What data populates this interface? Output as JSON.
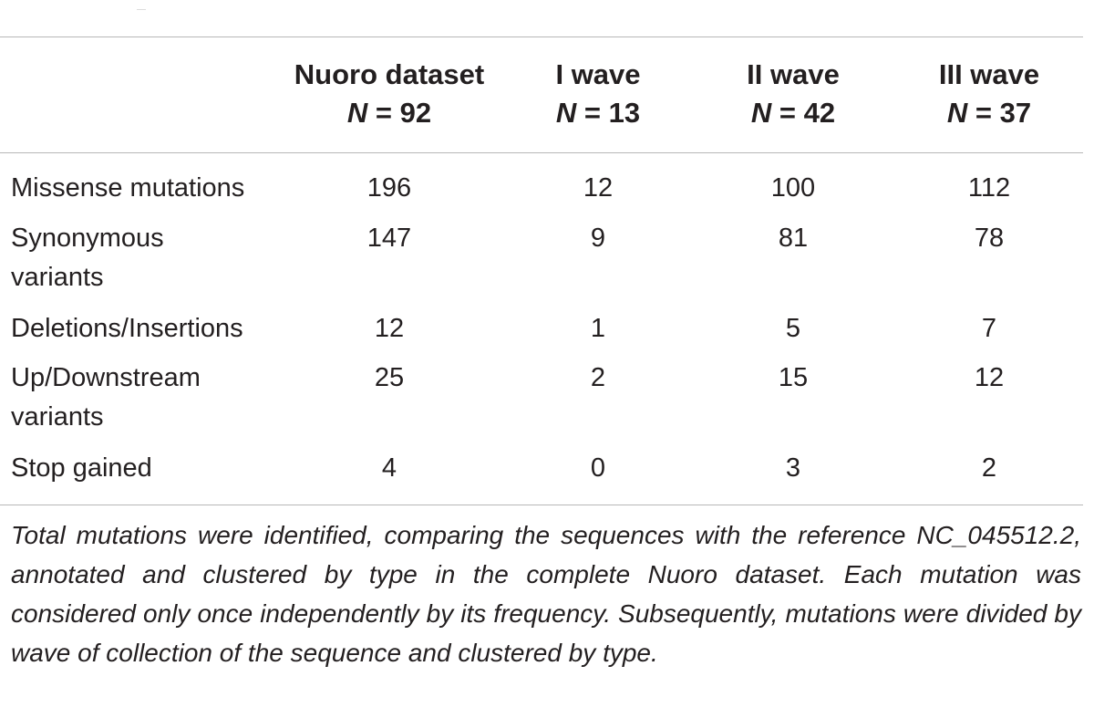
{
  "table": {
    "columns": [
      {
        "label": "Nuoro dataset",
        "n_prefix": "N",
        "n_value": "= 92"
      },
      {
        "label": "I wave",
        "n_prefix": "N",
        "n_value": "= 13"
      },
      {
        "label": "II wave",
        "n_prefix": "N",
        "n_value": "= 42"
      },
      {
        "label": "III wave",
        "n_prefix": "N",
        "n_value": "= 37"
      }
    ],
    "rows": [
      {
        "label": "Missense mutations",
        "values": [
          "196",
          "12",
          "100",
          "112"
        ]
      },
      {
        "label": "Synonymous variants",
        "values": [
          "147",
          "9",
          "81",
          "78"
        ]
      },
      {
        "label": "Deletions/Insertions",
        "values": [
          "12",
          "1",
          "5",
          "7"
        ]
      },
      {
        "label": "Up/Downstream variants",
        "values": [
          "25",
          "2",
          "15",
          "12"
        ]
      },
      {
        "label": "Stop gained",
        "values": [
          "4",
          "0",
          "3",
          "2"
        ]
      }
    ],
    "footnote": "Total mutations were identified, comparing the sequences with the reference NC_045512.2, annotated and clustered by type in the complete Nuoro dataset. Each mutation was considered only once independently by its frequency. Subsequently, mutations were divided by wave of collection of the sequence and clustered by type."
  }
}
